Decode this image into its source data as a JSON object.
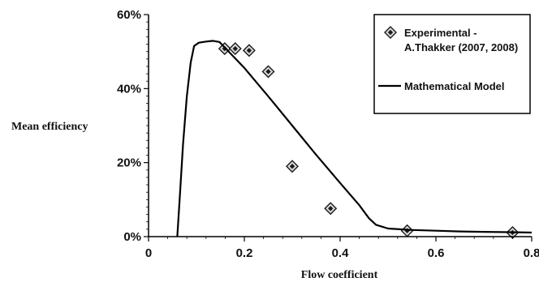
{
  "chart_data": {
    "type": "scatter",
    "title": "",
    "xlabel": "Flow coefficient",
    "ylabel": "Mean efficiency",
    "xlim": [
      0,
      0.8
    ],
    "ylim": [
      0,
      60
    ],
    "x_ticks": [
      0,
      0.2,
      0.4,
      0.6,
      0.8
    ],
    "x_tick_labels": [
      "0",
      "0.2",
      "0.4",
      "0.6",
      "0.8"
    ],
    "y_ticks": [
      0,
      20,
      40,
      60
    ],
    "y_tick_labels": [
      "0%",
      "20%",
      "40%",
      "60%"
    ],
    "grid": false,
    "legend_position": "top-right",
    "series": [
      {
        "name": "Experimental -\nA.Thakker (2007, 2008)",
        "legend_lines": [
          "Experimental  -",
          "A.Thakker (2007, 2008)"
        ],
        "kind": "scatter",
        "marker": "diamond",
        "color": "#1a1a1a",
        "points": [
          [
            0.159,
            50.8
          ],
          [
            0.181,
            50.8
          ],
          [
            0.21,
            50.3
          ],
          [
            0.25,
            44.6
          ],
          [
            0.3,
            19.0
          ],
          [
            0.38,
            7.6
          ],
          [
            0.54,
            1.6
          ],
          [
            0.76,
            1.1
          ]
        ]
      },
      {
        "name": "Mathematical Model",
        "legend_lines": [
          "Mathematical Model"
        ],
        "kind": "line",
        "color": "#000000",
        "points": [
          [
            0.06,
            0
          ],
          [
            0.065,
            10
          ],
          [
            0.072,
            25
          ],
          [
            0.08,
            38
          ],
          [
            0.088,
            47
          ],
          [
            0.095,
            51.5
          ],
          [
            0.105,
            52.4
          ],
          [
            0.12,
            52.7
          ],
          [
            0.135,
            52.9
          ],
          [
            0.148,
            52.6
          ],
          [
            0.2,
            45.6
          ],
          [
            0.25,
            37.9
          ],
          [
            0.3,
            30.0
          ],
          [
            0.35,
            22.1
          ],
          [
            0.4,
            14.5
          ],
          [
            0.44,
            8.5
          ],
          [
            0.46,
            5.0
          ],
          [
            0.475,
            3.2
          ],
          [
            0.5,
            2.2
          ],
          [
            0.55,
            1.8
          ],
          [
            0.6,
            1.6
          ],
          [
            0.65,
            1.4
          ],
          [
            0.7,
            1.3
          ],
          [
            0.75,
            1.2
          ],
          [
            0.8,
            1.1
          ]
        ]
      }
    ]
  }
}
